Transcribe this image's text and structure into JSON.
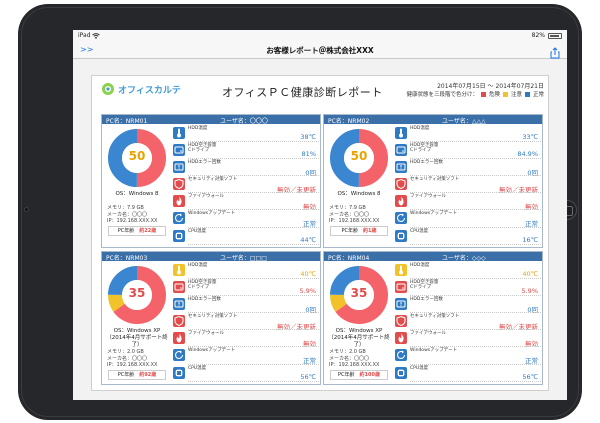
{
  "statusbar": {
    "device": "iPad",
    "battery_pct": "82%"
  },
  "navbar": {
    "title": "お客様レポート＠株式会社XXX",
    "back_label": ">>"
  },
  "report": {
    "logo": "オフィスカルテ",
    "title": "オフィスＰＣ健康診断レポート",
    "date_range": "2014年07月15日 ～ 2014年07月21日",
    "legend_caption": "健康状態を三段階で色分け：",
    "legend": [
      {
        "label": "危険",
        "color": "#e24c4c"
      },
      {
        "label": "注意",
        "color": "#f2c22b"
      },
      {
        "label": "正常",
        "color": "#2f7ac4"
      }
    ]
  },
  "labels": {
    "hdd_temp": "HDD温度",
    "hdd_space_1": "HDD空き容量",
    "hdd_space_2": "Cドライブ",
    "hdd_error": "HDDエラー回数",
    "security": "セキュリティ対策ソフト",
    "firewall": "ファイアウォール",
    "winupdate": "Windowsアップデート",
    "cpu_temp": "CPU温度",
    "pc_age": "PC年齢"
  },
  "pcs": [
    {
      "pc_name": "PC名：NRM01",
      "user": "ユーザ名：〇〇〇",
      "score": "50",
      "score_color": "#e9a400",
      "donut": {
        "red": 0.5,
        "yellow": 0.0,
        "blue": 0.5
      },
      "os": "OS：Windows 8",
      "memory": "メモリ：7.9 GB",
      "maker": "メーカ名：〇〇〇",
      "ip": "IP：192.168.XXX.XX",
      "pc_age": "約22歳",
      "hdd_temp": "38℃",
      "hdd_space": "81%",
      "hdd_error": "0回",
      "security": "無効／未更新",
      "firewall": "無効",
      "winupdate": "正常",
      "cpu_temp": "44℃",
      "status": [
        "blue",
        "blue",
        "blue",
        "red",
        "red",
        "blue",
        "blue"
      ]
    },
    {
      "pc_name": "PC名：NRM02",
      "user": "ユーザ名：△△△",
      "score": "50",
      "score_color": "#e9a400",
      "donut": {
        "red": 0.5,
        "yellow": 0.0,
        "blue": 0.5
      },
      "os": "OS：Windows 8",
      "memory": "メモリ：7.9 GB",
      "maker": "メーカ名：〇〇〇",
      "ip": "IP：192.168.XXX.XX",
      "pc_age": "約1歳",
      "hdd_temp": "33℃",
      "hdd_space": "84.9%",
      "hdd_error": "0回",
      "security": "無効／未更新",
      "firewall": "無効",
      "winupdate": "正常",
      "cpu_temp": "16℃",
      "status": [
        "blue",
        "blue",
        "blue",
        "red",
        "red",
        "blue",
        "blue"
      ]
    },
    {
      "pc_name": "PC名：NRM03",
      "user": "ユーザ名：□□□",
      "score": "35",
      "score_color": "#e24c4c",
      "donut": {
        "red": 0.65,
        "yellow": 0.1,
        "blue": 0.25
      },
      "os": "OS：Windows XP（2014年4月サポート終了）",
      "memory": "メモリ：2.0 GB",
      "maker": "メーカ名：〇〇〇",
      "ip": "IP：192.168.XXX.XX",
      "pc_age": "約92歳",
      "hdd_temp": "40℃",
      "hdd_space": "5.9%",
      "hdd_error": "0回",
      "security": "無効／未更新",
      "firewall": "無効",
      "winupdate": "正常",
      "cpu_temp": "56℃",
      "status": [
        "yellow",
        "red",
        "blue",
        "red",
        "red",
        "blue",
        "blue"
      ]
    },
    {
      "pc_name": "PC名：NRM04",
      "user": "ユーザ名：◇◇◇",
      "score": "35",
      "score_color": "#e24c4c",
      "donut": {
        "red": 0.65,
        "yellow": 0.1,
        "blue": 0.25
      },
      "os": "OS：Windows XP（2014年4月サポート終了）",
      "memory": "メモリ：2.0 GB",
      "maker": "メーカ名：〇〇〇",
      "ip": "IP：192.168.XXX.XX",
      "pc_age": "約100歳",
      "hdd_temp": "40℃",
      "hdd_space": "5.9%",
      "hdd_error": "0回",
      "security": "無効／未更新",
      "firewall": "無効",
      "winupdate": "正常",
      "cpu_temp": "56℃",
      "status": [
        "yellow",
        "red",
        "blue",
        "red",
        "red",
        "blue",
        "blue"
      ]
    }
  ]
}
